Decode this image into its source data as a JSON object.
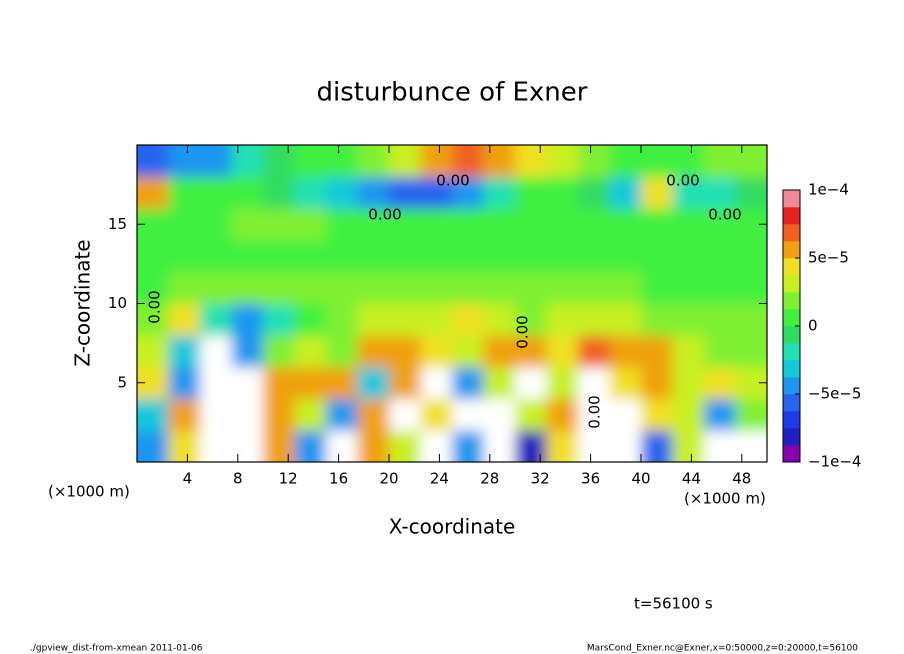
{
  "chart_data": {
    "type": "heatmap",
    "title": "disturbunce of Exner",
    "x_label": "X-coordinate",
    "y_label": "Z-coordinate",
    "x_unit": "(×1000 m)",
    "x_unit_right": "(×1000 m)",
    "xlim": [
      0,
      50
    ],
    "ylim": [
      0,
      20
    ],
    "xticks": [
      4,
      8,
      12,
      16,
      20,
      24,
      28,
      32,
      36,
      40,
      44,
      48
    ],
    "yticks": [
      5,
      10,
      15
    ],
    "x": [
      1.25,
      3.75,
      6.25,
      8.75,
      11.25,
      13.75,
      16.25,
      18.75,
      21.25,
      23.75,
      26.25,
      28.75,
      31.25,
      33.75,
      36.25,
      38.75,
      41.25,
      43.75,
      46.25,
      48.75
    ],
    "y": [
      1,
      3,
      5,
      7,
      9,
      11,
      13,
      15,
      17,
      19
    ],
    "z": [
      [
        -5e-05,
        4e-05,
        -0.00015,
        -0.00015,
        5e-05,
        -5e-05,
        -0.00015,
        5e-05,
        3e-05,
        -0.00015,
        -5e-05,
        -0.00015,
        -8e-05,
        4e-05,
        -0.00015,
        -0.00015,
        -6e-05,
        3e-05,
        -0.00015,
        -0.00015
      ],
      [
        -3e-05,
        5e-05,
        -0.00015,
        -0.00015,
        6e-05,
        3e-05,
        -4e-05,
        6e-05,
        -0.00015,
        4e-05,
        -0.00015,
        -0.00015,
        3e-05,
        5e-05,
        -0.00015,
        -0.00015,
        4e-05,
        3e-05,
        -4e-05,
        2e-05
      ],
      [
        4e-05,
        -4e-05,
        -0.00015,
        -0.00015,
        5e-05,
        6e-05,
        5e-05,
        -3e-05,
        6e-05,
        -0.00015,
        -5e-05,
        3e-05,
        -0.00015,
        3e-05,
        -0.00015,
        4e-05,
        5e-05,
        3e-05,
        4e-05,
        3e-05
      ],
      [
        3e-05,
        -3e-05,
        -0.00015,
        -4e-05,
        2e-05,
        3e-05,
        2e-05,
        6e-05,
        5e-05,
        4e-05,
        3e-05,
        5e-05,
        6e-05,
        4e-05,
        7e-05,
        6e-05,
        5e-05,
        3e-05,
        2e-05,
        2e-05
      ],
      [
        2e-05,
        4e-05,
        -2e-05,
        -5e-05,
        -2e-05,
        1e-05,
        2e-05,
        3e-05,
        3e-05,
        3e-05,
        4e-05,
        3e-05,
        2e-05,
        3e-05,
        3e-05,
        3e-05,
        2e-05,
        2e-05,
        2e-05,
        2e-05
      ],
      [
        1e-05,
        2e-05,
        2e-05,
        2e-05,
        2e-05,
        2e-05,
        2e-05,
        2e-05,
        2e-05,
        2e-05,
        2e-05,
        1.5e-05,
        2e-05,
        1.5e-05,
        1.5e-05,
        1.5e-05,
        1e-05,
        1e-05,
        1e-05,
        1e-05
      ],
      [
        0,
        1e-05,
        1e-05,
        1e-05,
        1e-05,
        1e-05,
        1e-05,
        1e-05,
        1e-05,
        1e-05,
        1e-05,
        1e-05,
        1e-05,
        1e-05,
        1e-05,
        1e-05,
        1e-05,
        5e-06,
        5e-06,
        5e-06
      ],
      [
        0,
        1e-05,
        1e-05,
        1.5e-05,
        1.5e-05,
        1.5e-05,
        1e-05,
        1e-05,
        1e-05,
        1e-05,
        1e-05,
        1e-05,
        1e-05,
        5e-06,
        5e-06,
        5e-06,
        5e-06,
        5e-06,
        0,
        0
      ],
      [
        5e-05,
        1e-05,
        1e-05,
        5e-06,
        -1e-05,
        -2e-05,
        -3e-05,
        -5e-05,
        -6e-05,
        -6e-05,
        -4e-05,
        -2e-05,
        0,
        1e-05,
        -1e-05,
        -3e-05,
        4e-05,
        -2e-05,
        -2e-05,
        -1e-05
      ],
      [
        -6e-05,
        -5e-05,
        -4e-05,
        -2e-05,
        -1e-05,
        0,
        1e-05,
        2e-05,
        3e-05,
        5e-05,
        7e-05,
        6e-05,
        4e-05,
        3e-05,
        2e-05,
        1e-05,
        1e-05,
        1e-05,
        2e-05,
        2e-05
      ]
    ],
    "colorbar": {
      "lim": [
        -0.0001,
        0.0001
      ],
      "ticks": [
        {
          "value": -0.0001,
          "label": "−1e−4"
        },
        {
          "value": -5e-05,
          "label": "−5e−5"
        },
        0,
        {
          "value": 5e-05,
          "label": "5e−5"
        },
        {
          "value": 0.0001,
          "label": "1e−4"
        }
      ],
      "colors": [
        "#8a00b0",
        "#2020c0",
        "#1e3ce6",
        "#2864f0",
        "#1e96f0",
        "#14c8dc",
        "#20e0b4",
        "#30dc60",
        "#40f040",
        "#80f030",
        "#c8f020",
        "#f0e020",
        "#f0a010",
        "#f06020",
        "#e82020",
        "#f08a9a"
      ],
      "out_of_range_color": "#ffffff"
    },
    "contour_labels": [
      "0.00",
      "0.00",
      "0.00",
      "0.00",
      "0.00",
      "0.00",
      "0.00"
    ],
    "time_label": "t=56100 s",
    "footer_left": "./gpview_dist-from-xmean  2011-01-06",
    "footer_right": "MarsCond_Exner.nc@Exner,x=0:50000,z=0:20000,t=56100"
  }
}
